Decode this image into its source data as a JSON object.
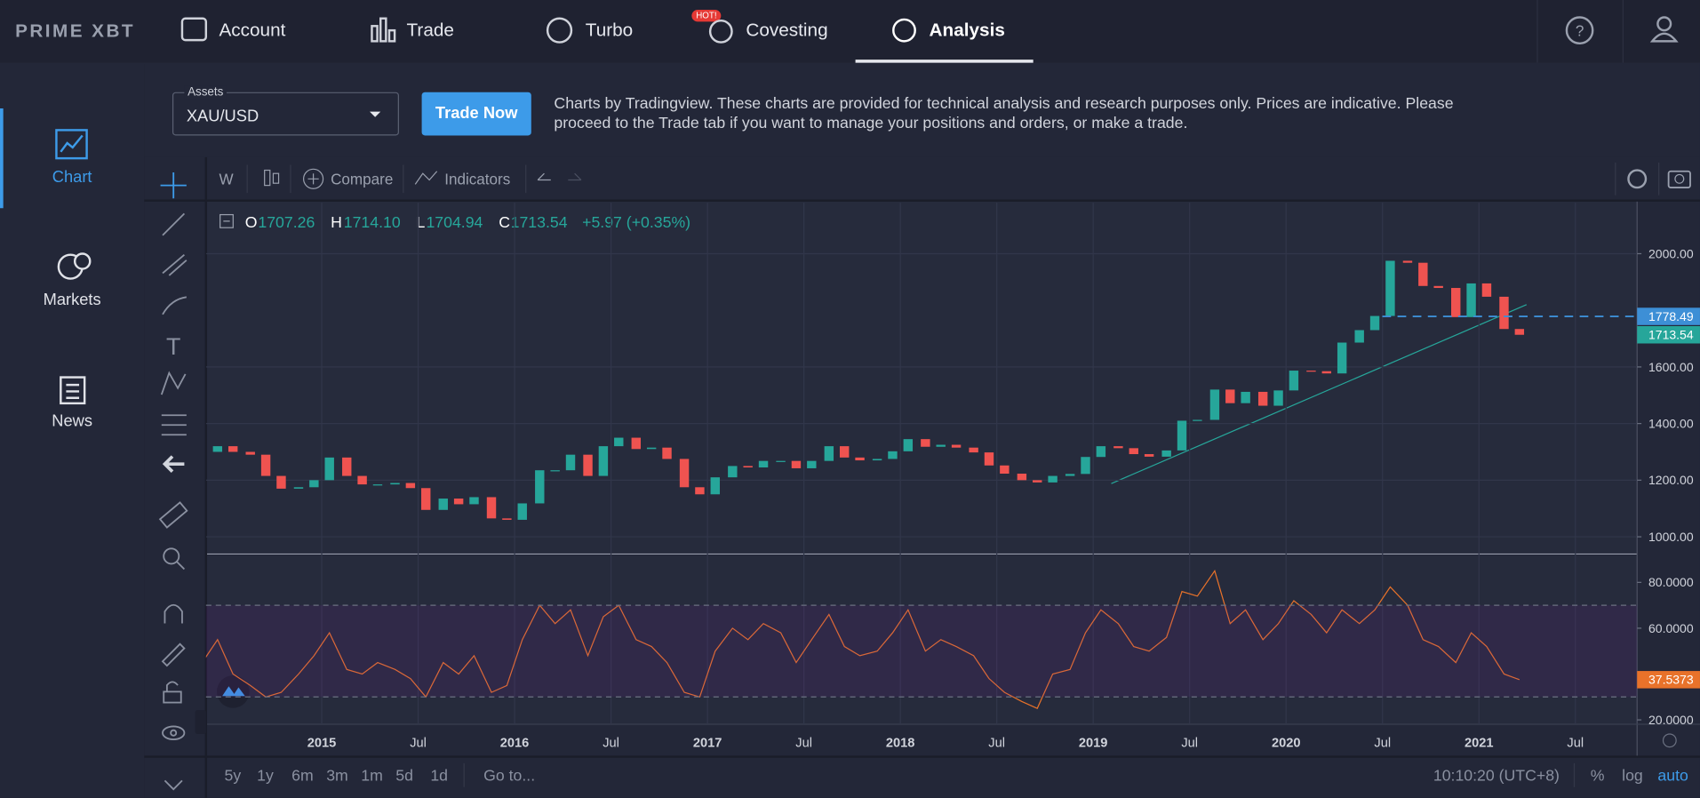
{
  "nav": {
    "logo": "PRIME XBT",
    "items": [
      "Account",
      "Trade",
      "Turbo",
      "Covesting",
      "Analysis"
    ],
    "badge": "HOT!"
  },
  "sidebar": [
    "Chart",
    "Markets",
    "News"
  ],
  "assets": {
    "label": "Assets",
    "value": "XAU/USD"
  },
  "button": "Trade Now",
  "info_text": "Charts by Tradingview. These charts are provided for technical analysis and research purposes only. Prices are indicative. Please proceed to the Trade tab if you want to manage your positions and orders, or make a trade.",
  "toolbar": {
    "interval": "W",
    "compare": "Compare",
    "indicators": "Indicators"
  },
  "legend": {
    "o": "O",
    "open": "1707.26",
    "h": "H",
    "high": "1714.10",
    "l": "L",
    "low": "1704.94",
    "c": "C",
    "close": "1713.54",
    "change": "+5.97 (+0.35%)"
  },
  "chart_data": [
    {
      "type": "candlestick",
      "up_color": "#26a69a",
      "down_color": "#ef5350",
      "x": [
        2014.38,
        2014.46,
        2014.54,
        2014.63,
        2014.71,
        2014.79,
        2014.88,
        2014.96,
        2015.04,
        2015.13,
        2015.21,
        2015.29,
        2015.38,
        2015.46,
        2015.54,
        2015.63,
        2015.71,
        2015.79,
        2015.88,
        2015.96,
        2016.04,
        2016.13,
        2016.21,
        2016.29,
        2016.38,
        2016.46,
        2016.54,
        2016.63,
        2016.71,
        2016.79,
        2016.88,
        2016.96,
        2017.04,
        2017.13,
        2017.21,
        2017.29,
        2017.38,
        2017.46,
        2017.54,
        2017.63,
        2017.71,
        2017.79,
        2017.88,
        2017.96,
        2018.04,
        2018.13,
        2018.21,
        2018.29,
        2018.38,
        2018.46,
        2018.54,
        2018.63,
        2018.71,
        2018.79,
        2018.88,
        2018.96,
        2019.04,
        2019.13,
        2019.21,
        2019.29,
        2019.38,
        2019.46,
        2019.54,
        2019.63,
        2019.71,
        2019.79,
        2019.88,
        2019.96,
        2020.04,
        2020.13,
        2020.21,
        2020.29,
        2020.38,
        2020.46,
        2020.54,
        2020.63,
        2020.71,
        2020.79,
        2020.88,
        2020.96,
        2021.04,
        2021.13,
        2021.21
      ],
      "values": [
        1300,
        1320,
        1300,
        1290,
        1215,
        1170,
        1175,
        1200,
        1280,
        1215,
        1185,
        1185,
        1190,
        1172,
        1095,
        1135,
        1115,
        1140,
        1065,
        1060,
        1118,
        1235,
        1235,
        1290,
        1215,
        1320,
        1350,
        1310,
        1315,
        1275,
        1175,
        1150,
        1210,
        1250,
        1245,
        1268,
        1268,
        1242,
        1268,
        1320,
        1280,
        1270,
        1275,
        1302,
        1345,
        1318,
        1325,
        1315,
        1298,
        1252,
        1223,
        1200,
        1192,
        1215,
        1222,
        1282,
        1320,
        1313,
        1292,
        1283,
        1305,
        1410,
        1413,
        1520,
        1472,
        1512,
        1463,
        1517,
        1587,
        1585,
        1577,
        1686,
        1730,
        1780,
        1975,
        1968,
        1886,
        1879,
        1776,
        1895,
        1848,
        1734,
        1713.54
      ],
      "xlim": [
        2014.4,
        2021.82
      ],
      "ylim": [
        943,
        2180
      ],
      "xticks": [
        2015,
        {
          "value": 2015.5,
          "label": "Jul"
        },
        2016,
        {
          "value": 2016.5,
          "label": "Jul"
        },
        2017,
        {
          "value": 2017.5,
          "label": "Jul"
        },
        2018,
        {
          "value": 2018.5,
          "label": "Jul"
        },
        2019,
        {
          "value": 2019.5,
          "label": "Jul"
        },
        2020,
        {
          "value": 2020.5,
          "label": "Jul"
        },
        2021,
        {
          "value": 2021.5,
          "label": "Jul"
        }
      ],
      "yticks": [
        {
          "value": 1000,
          "label": "1000.00"
        },
        {
          "value": 1200,
          "label": "1200.00"
        },
        {
          "value": 1400,
          "label": "1400.00"
        },
        {
          "value": 1600,
          "label": "1600.00"
        },
        {
          "value": 2000,
          "label": "2000.00"
        }
      ],
      "price_lines": [
        {
          "value": 1778.49,
          "color": "#3d8fd6",
          "dashed": true
        },
        {
          "value": 1713.54,
          "color": "#26a69a",
          "dashed": false
        }
      ],
      "grid": true
    },
    {
      "type": "line",
      "color": "#e8722a",
      "x": [
        2014.38,
        2014.46,
        2014.54,
        2014.63,
        2014.71,
        2014.79,
        2014.88,
        2014.96,
        2015.04,
        2015.13,
        2015.21,
        2015.29,
        2015.38,
        2015.46,
        2015.54,
        2015.63,
        2015.71,
        2015.79,
        2015.88,
        2015.96,
        2016.04,
        2016.13,
        2016.21,
        2016.29,
        2016.38,
        2016.46,
        2016.54,
        2016.63,
        2016.71,
        2016.79,
        2016.88,
        2016.96,
        2017.04,
        2017.13,
        2017.21,
        2017.29,
        2017.38,
        2017.46,
        2017.54,
        2017.63,
        2017.71,
        2017.79,
        2017.88,
        2017.96,
        2018.04,
        2018.13,
        2018.21,
        2018.29,
        2018.38,
        2018.46,
        2018.54,
        2018.63,
        2018.71,
        2018.79,
        2018.88,
        2018.96,
        2019.04,
        2019.13,
        2019.21,
        2019.29,
        2019.38,
        2019.46,
        2019.54,
        2019.63,
        2019.71,
        2019.79,
        2019.88,
        2019.96,
        2020.04,
        2020.13,
        2020.21,
        2020.29,
        2020.38,
        2020.46,
        2020.54,
        2020.63,
        2020.71,
        2020.79,
        2020.88,
        2020.96,
        2021.04,
        2021.13,
        2021.21
      ],
      "values": [
        45,
        55,
        40,
        35,
        30,
        32,
        40,
        48,
        58,
        42,
        40,
        45,
        42,
        38,
        30,
        45,
        40,
        48,
        32,
        35,
        55,
        70,
        62,
        68,
        48,
        65,
        70,
        55,
        52,
        45,
        32,
        30,
        50,
        60,
        55,
        62,
        58,
        45,
        55,
        66,
        52,
        48,
        50,
        58,
        68,
        50,
        55,
        52,
        48,
        38,
        32,
        28,
        25,
        40,
        42,
        58,
        68,
        62,
        52,
        50,
        56,
        76,
        74,
        85,
        62,
        68,
        55,
        62,
        72,
        66,
        58,
        68,
        62,
        68,
        78,
        70,
        55,
        52,
        45,
        58,
        52,
        40,
        37.5373
      ],
      "xlim": [
        2014.4,
        2021.82
      ],
      "ylim": [
        18.1,
        91.9
      ],
      "yticks": [
        {
          "value": 20,
          "label": "20.0000"
        },
        {
          "value": 60,
          "label": "60.0000"
        },
        {
          "value": 80,
          "label": "80.0000"
        }
      ],
      "band": [
        30,
        70
      ],
      "band_color": "#7b1fa2"
    }
  ],
  "bottom_bar": {
    "ranges": [
      "5y",
      "1y",
      "6m",
      "3m",
      "1m",
      "5d",
      "1d"
    ],
    "goto": "Go to...",
    "time": "10:10:20 (UTC+8)",
    "percent": "%",
    "log": "log",
    "auto": "auto"
  }
}
